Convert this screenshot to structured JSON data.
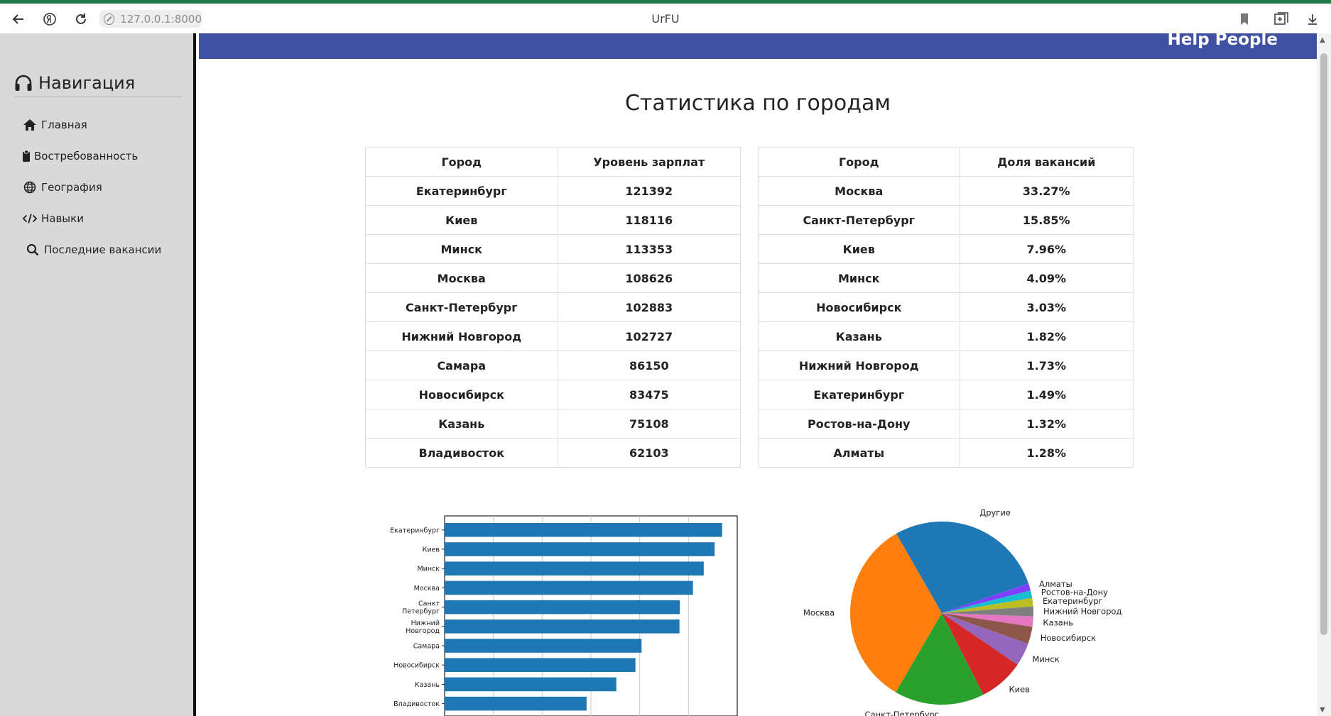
{
  "browser": {
    "url": "127.0.0.1:8000",
    "tab_title": "UrFU"
  },
  "header": {
    "brand": "Help People",
    "color": "#3f51a2"
  },
  "sidebar": {
    "title": "Навигация",
    "items": [
      {
        "label": "Главная",
        "icon": "home-icon"
      },
      {
        "label": "Востребованность",
        "icon": "clipboard-icon"
      },
      {
        "label": "География",
        "icon": "globe-icon"
      },
      {
        "label": "Навыки",
        "icon": "code-icon"
      },
      {
        "label": "Последние вакансии",
        "icon": "search-icon"
      }
    ]
  },
  "main": {
    "title": "Статистика по городам"
  },
  "salary_table": {
    "headers": [
      "Город",
      "Уровень зарплат"
    ],
    "rows": [
      [
        "Екатеринбург",
        "121392"
      ],
      [
        "Киев",
        "118116"
      ],
      [
        "Минск",
        "113353"
      ],
      [
        "Москва",
        "108626"
      ],
      [
        "Санкт-Петербург",
        "102883"
      ],
      [
        "Нижний Новгород",
        "102727"
      ],
      [
        "Самара",
        "86150"
      ],
      [
        "Новосибирск",
        "83475"
      ],
      [
        "Казань",
        "75108"
      ],
      [
        "Владивосток",
        "62103"
      ]
    ]
  },
  "share_table": {
    "headers": [
      "Город",
      "Доля вакансий"
    ],
    "rows": [
      [
        "Москва",
        "33.27%"
      ],
      [
        "Санкт-Петербург",
        "15.85%"
      ],
      [
        "Киев",
        "7.96%"
      ],
      [
        "Минск",
        "4.09%"
      ],
      [
        "Новосибирск",
        "3.03%"
      ],
      [
        "Казань",
        "1.82%"
      ],
      [
        "Нижний Новгород",
        "1.73%"
      ],
      [
        "Екатеринбург",
        "1.49%"
      ],
      [
        "Ростов-на-Дону",
        "1.32%"
      ],
      [
        "Алматы",
        "1.28%"
      ]
    ]
  },
  "chart_data": [
    {
      "type": "bar",
      "orientation": "horizontal",
      "categories": [
        "Екатеринбург",
        "Киев",
        "Минск",
        "Москва",
        "Санкт\nПетербург",
        "Нижний\nНовгород",
        "Самара",
        "Новосибирск",
        "Казань",
        "Владивосток"
      ],
      "values": [
        121392,
        118116,
        113353,
        108626,
        102883,
        102727,
        86150,
        83475,
        75108,
        62103
      ],
      "xlim": [
        0,
        128000
      ],
      "grid": true,
      "color": "#1f77b4"
    },
    {
      "type": "pie",
      "labels": [
        "Другие",
        "Алматы",
        "Ростов-на-Дону",
        "Екатеринбург",
        "Нижний Новгород",
        "Казань",
        "Новосибирск",
        "Минск",
        "Киев",
        "Санкт-Петербург",
        "Москва"
      ],
      "values": [
        27.96,
        1.28,
        1.32,
        1.49,
        1.73,
        1.82,
        3.03,
        4.09,
        7.96,
        15.85,
        33.27
      ],
      "colors": [
        "#1f77b4",
        "#7f3fff",
        "#17becf",
        "#bcbd22",
        "#7f7f7f",
        "#e377c2",
        "#8c564b",
        "#9467bd",
        "#d62728",
        "#2ca02c",
        "#ff7f0e"
      ]
    }
  ]
}
